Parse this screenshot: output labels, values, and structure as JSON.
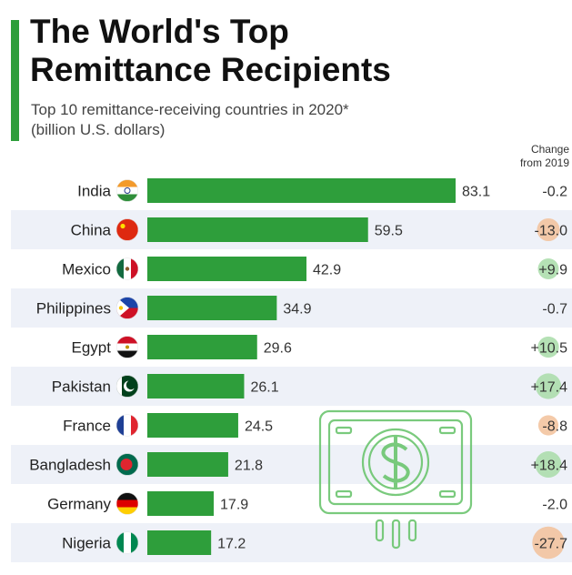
{
  "header": {
    "title_line1": "The World's Top",
    "title_line2": "Remittance Recipients",
    "subtitle_line1": "Top 10 remittance-receiving countries in 2020*",
    "subtitle_line2": "(billion U.S. dollars)",
    "change_header_line1": "Change",
    "change_header_line2": "from 2019"
  },
  "colors": {
    "accent": "#2e9e3b",
    "bar": "#2e9e3b",
    "row_stripe": "#eef1f8",
    "change_positive": "#a8dca8",
    "change_negative": "#f2c19a"
  },
  "chart_data": {
    "type": "bar",
    "orientation": "horizontal",
    "title": "The World's Top Remittance Recipients",
    "subtitle": "Top 10 remittance-receiving countries in 2020* (billion U.S. dollars)",
    "categories": [
      "India",
      "China",
      "Mexico",
      "Philippines",
      "Egypt",
      "Pakistan",
      "France",
      "Bangladesh",
      "Germany",
      "Nigeria"
    ],
    "values": [
      83.1,
      59.5,
      42.9,
      34.9,
      29.6,
      26.1,
      24.5,
      21.8,
      17.9,
      17.2
    ],
    "value_labels": [
      "83.1",
      "59.5",
      "42.9",
      "34.9",
      "29.6",
      "26.1",
      "24.5",
      "21.8",
      "17.9",
      "17.2"
    ],
    "change_from_2019": [
      "-0.2",
      "-13.0",
      "+9.9",
      "-0.7",
      "+10.5",
      "+17.4",
      "-8.8",
      "+18.4",
      "-2.0",
      "-27.7"
    ],
    "change_values": [
      -0.2,
      -13.0,
      9.9,
      -0.7,
      10.5,
      17.4,
      -8.8,
      18.4,
      -2.0,
      -27.7
    ],
    "xlim": [
      0,
      83.1
    ],
    "flag_icons": [
      "india-flag-icon",
      "china-flag-icon",
      "mexico-flag-icon",
      "philippines-flag-icon",
      "egypt-flag-icon",
      "pakistan-flag-icon",
      "france-flag-icon",
      "bangladesh-flag-icon",
      "germany-flag-icon",
      "nigeria-flag-icon"
    ]
  },
  "decoration": {
    "icon": "money-bill-dollar-icon"
  }
}
